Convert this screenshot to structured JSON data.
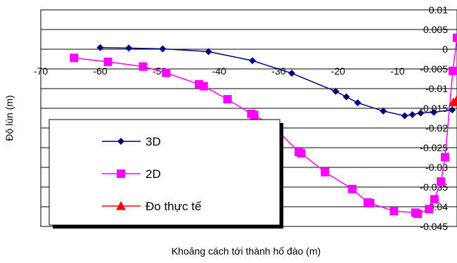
{
  "chart_data": {
    "type": "line",
    "title": "",
    "xlabel": "Khoảng cách tới thành hố đào (m)",
    "ylabel": "Độ lún (m)",
    "xlim": [
      -70,
      0
    ],
    "ylim": [
      -0.045,
      0.01
    ],
    "x_ticks": [
      -70,
      -60,
      -50,
      -40,
      -30,
      -20,
      -10
    ],
    "x_tick_labels": [
      "-70",
      "-60",
      "-50",
      "-40",
      "-30",
      "-20",
      "-10"
    ],
    "y_ticks": [
      0.01,
      0.005,
      0,
      -0.005,
      -0.01,
      -0.015,
      -0.02,
      -0.025,
      -0.03,
      -0.035,
      -0.04,
      -0.045
    ],
    "y_tick_labels": [
      "0.01",
      "0.005",
      "0",
      "-0.005",
      "-0.01",
      "-0.015",
      "-0.02",
      "-0.025",
      "-0.03",
      "-0.035",
      "-0.04",
      "-0.045"
    ],
    "grid": "horizontal",
    "legend_position": "bottom-left",
    "series": [
      {
        "name": "3D",
        "color": "#000080",
        "marker": "diamond",
        "x": [
          -60,
          -55.2,
          -49.5,
          -41.8,
          -34.4,
          -27.8,
          -20.4,
          -18.6,
          -16.7,
          -12.4,
          -8.8,
          -7.5,
          -6.1,
          -3.9,
          -0.8
        ],
        "y": [
          0.0004,
          0.0003,
          0.0001,
          -0.0006,
          -0.0029,
          -0.0061,
          -0.0107,
          -0.0121,
          -0.0136,
          -0.0157,
          -0.0169,
          -0.0166,
          -0.0162,
          -0.016,
          -0.0154
        ]
      },
      {
        "name": "2D",
        "color": "#FF00FF",
        "marker": "square",
        "x": [
          -64.4,
          -58.7,
          -52.8,
          -48.9,
          -43.4,
          -42.6,
          -38.6,
          -34.6,
          -34.1,
          -30.9,
          -30.1,
          -26.6,
          -26.2,
          -22.2,
          -17.6,
          -15,
          -14.6,
          -10.6,
          -7,
          -6.6,
          -4.7,
          -3.8,
          -2.7,
          -2,
          -0.7,
          0
        ],
        "y": [
          -0.0022,
          -0.0032,
          -0.0044,
          -0.006,
          -0.0089,
          -0.0094,
          -0.0127,
          -0.0164,
          -0.0167,
          -0.0196,
          -0.0208,
          -0.0261,
          -0.0264,
          -0.0312,
          -0.0355,
          -0.0389,
          -0.0391,
          -0.0411,
          -0.0415,
          -0.0418,
          -0.0406,
          -0.0381,
          -0.0336,
          -0.0274,
          -0.0055,
          0.0029
        ]
      },
      {
        "name": "Đo thực tế",
        "color": "#FF0000",
        "marker": "triangle",
        "x": [
          -0.6,
          0
        ],
        "y": [
          -0.0135,
          -0.0128
        ]
      }
    ]
  }
}
